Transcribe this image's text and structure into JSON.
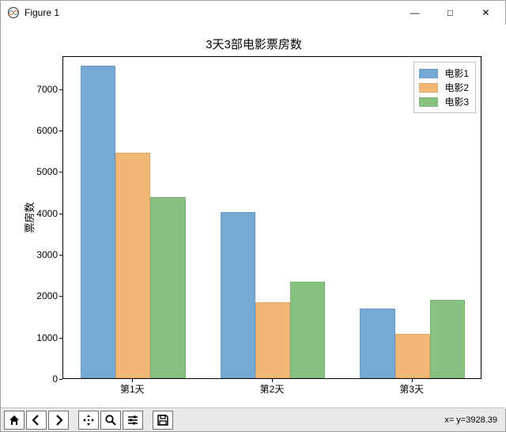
{
  "window": {
    "title": "Figure 1",
    "minimize": "—",
    "maximize": "□",
    "close": "✕"
  },
  "chart": {
    "type": "bar",
    "title": "3天3部电影票房数",
    "ylabel": "票房数",
    "title_fontsize": 15,
    "label_fontsize": 13,
    "background_color": "#ffffff",
    "border_color": "#000000",
    "bar_width": 0.25,
    "categories": [
      "第1天",
      "第2天",
      "第3天"
    ],
    "series": [
      {
        "name": "电影1",
        "color": "#74a8d5",
        "values": [
          7550,
          4010,
          1680
        ]
      },
      {
        "name": "电影2",
        "color": "#f2b675",
        "values": [
          5450,
          1840,
          1080
        ]
      },
      {
        "name": "电影3",
        "color": "#87c281",
        "values": [
          4370,
          2340,
          1890
        ]
      }
    ],
    "ylim": [
      0,
      7800
    ],
    "yticks": [
      0,
      1000,
      2000,
      3000,
      4000,
      5000,
      6000,
      7000
    ],
    "legend_position": "upper-right"
  },
  "toolbar": {
    "home": "home-icon",
    "back": "back-icon",
    "forward": "forward-icon",
    "pan": "pan-icon",
    "zoom": "zoom-icon",
    "configure": "configure-icon",
    "save": "save-icon",
    "status": "x= y=3928.39"
  }
}
